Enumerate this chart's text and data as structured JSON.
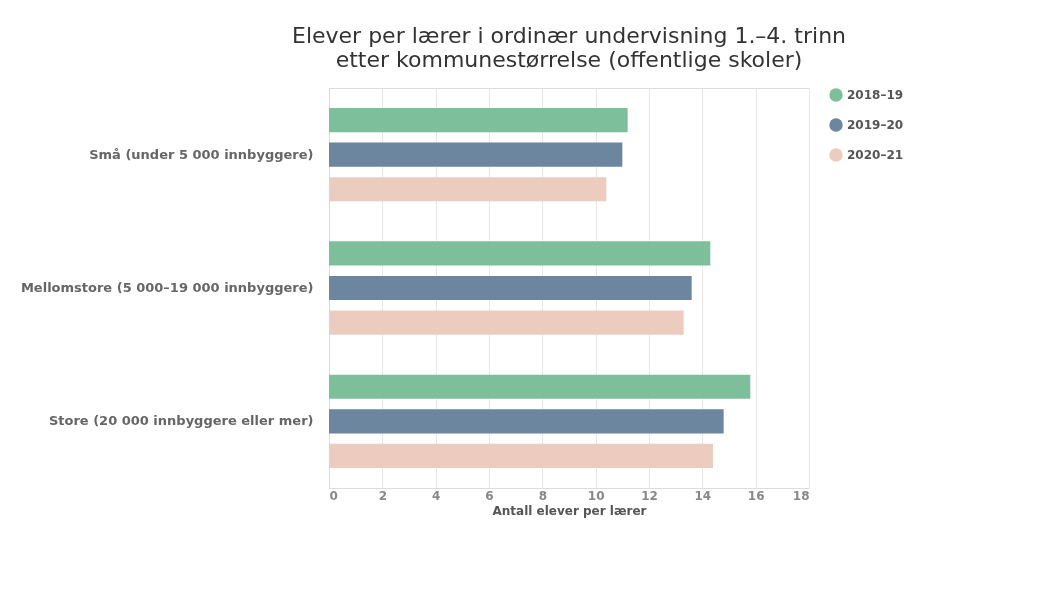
{
  "chart_data": {
    "type": "bar",
    "orientation": "horizontal",
    "title": "Elever per lærer i ordinær undervisning 1.–4. trinn etter kommunestørrelse (offentlige skoler)",
    "xlabel": "Antall elever per lærer",
    "categories": [
      "Små (under 5 000 innbyggere)",
      "Mellomstore (5 000–19 000 innbyggere)",
      "Store (20 000 innbyggere eller mer)"
    ],
    "series": [
      {
        "name": "2018–19",
        "color": "#7dbf9a",
        "values": [
          11.2,
          14.3,
          15.8
        ]
      },
      {
        "name": "2019–20",
        "color": "#6b869e",
        "values": [
          11.0,
          13.6,
          14.8
        ]
      },
      {
        "name": "2020–21",
        "color": "#ecccbf",
        "values": [
          10.4,
          13.3,
          14.4
        ]
      }
    ],
    "xlim": [
      0,
      18
    ],
    "xticks": [
      0,
      2,
      4,
      6,
      8,
      10,
      12,
      14,
      16,
      18
    ],
    "grid": "x",
    "legend": "right",
    "marker": "circle"
  }
}
